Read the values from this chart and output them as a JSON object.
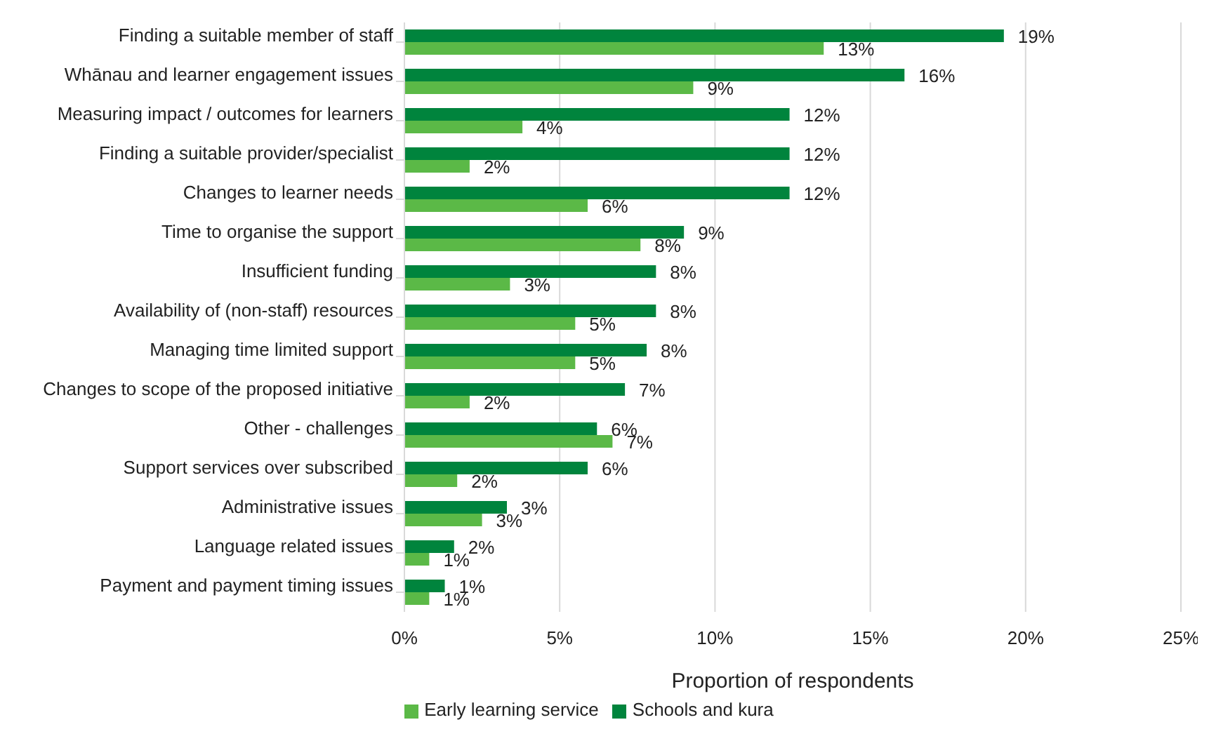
{
  "chart_data": {
    "type": "bar",
    "orientation": "horizontal",
    "xlabel": "Proportion of respondents",
    "categories": [
      "Finding a suitable member of staff",
      "Whānau and learner engagement issues",
      "Measuring impact / outcomes for learners",
      "Finding a suitable provider/specialist",
      "Changes to learner needs",
      "Time to organise the support",
      "Insufficient funding",
      "Availability of (non-staff) resources",
      "Managing time limited support",
      "Changes to scope of the proposed initiative",
      "Other - challenges",
      "Support services over subscribed",
      "Administrative issues",
      "Language related issues",
      "Payment and payment timing issues"
    ],
    "series": [
      {
        "name": "Schools and kura",
        "color": "#00843d",
        "values": [
          19.3,
          16.1,
          12.4,
          12.4,
          12.4,
          9.0,
          8.1,
          8.1,
          7.8,
          7.1,
          6.2,
          5.9,
          3.3,
          1.6,
          1.3
        ],
        "value_labels": [
          "19%",
          "16%",
          "12%",
          "12%",
          "12%",
          "9%",
          "8%",
          "8%",
          "8%",
          "7%",
          "6%",
          "6%",
          "3%",
          "2%",
          "1%"
        ]
      },
      {
        "name": "Early learning service",
        "color": "#5bb947",
        "values": [
          13.5,
          9.3,
          3.8,
          2.1,
          5.9,
          7.6,
          3.4,
          5.5,
          5.5,
          2.1,
          6.7,
          1.7,
          2.5,
          0.8,
          0.8
        ],
        "value_labels": [
          "13%",
          "9%",
          "4%",
          "2%",
          "6%",
          "8%",
          "3%",
          "5%",
          "5%",
          "2%",
          "7%",
          "2%",
          "3%",
          "1%",
          "1%"
        ]
      }
    ],
    "xlim": [
      0,
      25
    ],
    "xticks": [
      {
        "value": 0,
        "label": "0%"
      },
      {
        "value": 5,
        "label": "5%"
      },
      {
        "value": 10,
        "label": "10%"
      },
      {
        "value": 15,
        "label": "15%"
      },
      {
        "value": 20,
        "label": "20%"
      },
      {
        "value": 25,
        "label": "25%"
      }
    ],
    "grid": "x",
    "legend": "bottom"
  }
}
